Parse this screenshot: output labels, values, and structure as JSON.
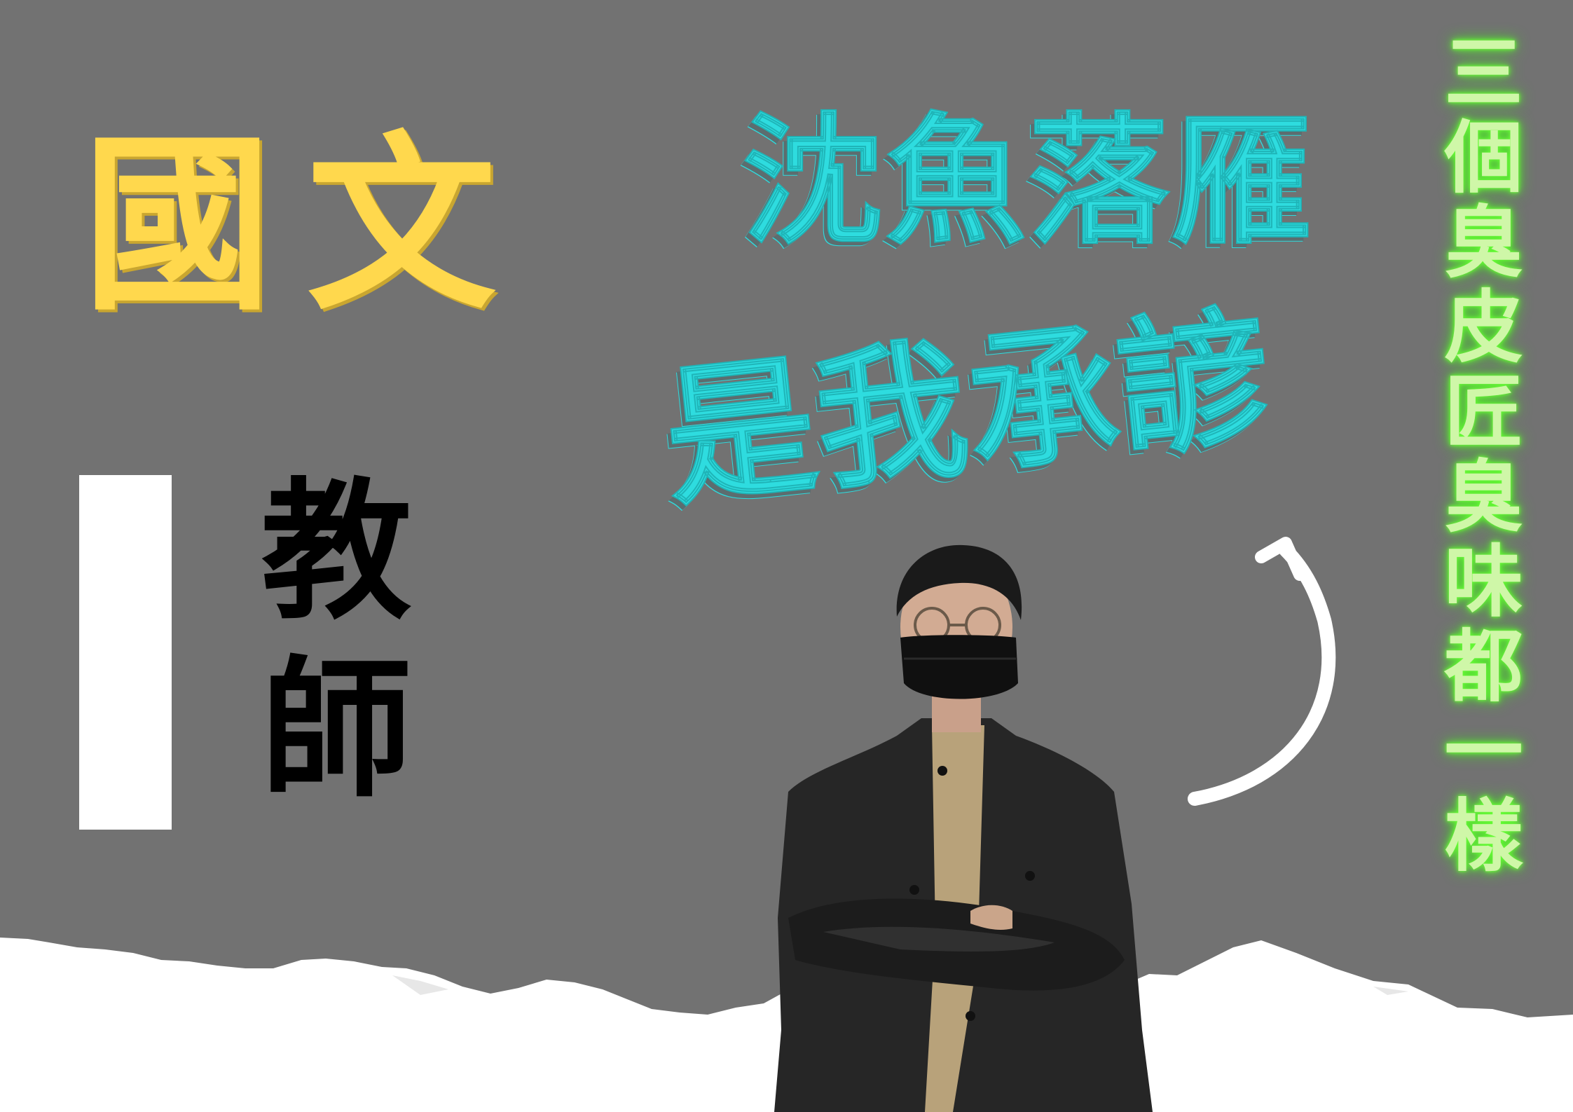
{
  "poster": {
    "title": "國文",
    "role": "教師",
    "headline_line1": "沈魚落雁",
    "headline_line2": "是我承諺",
    "side_text": "三個臭皮匠臭味都一樣"
  },
  "colors": {
    "background": "#727272",
    "title_yellow": "#FFD84D",
    "headline_cyan": "#2EDCDF",
    "side_neon_green": "#CFF7A8",
    "role_black": "#000000",
    "torn_paper": "#ffffff"
  },
  "icons": {
    "arrow": "curved-arrow-up-icon",
    "photo": "man-in-black-jacket-with-mask"
  }
}
